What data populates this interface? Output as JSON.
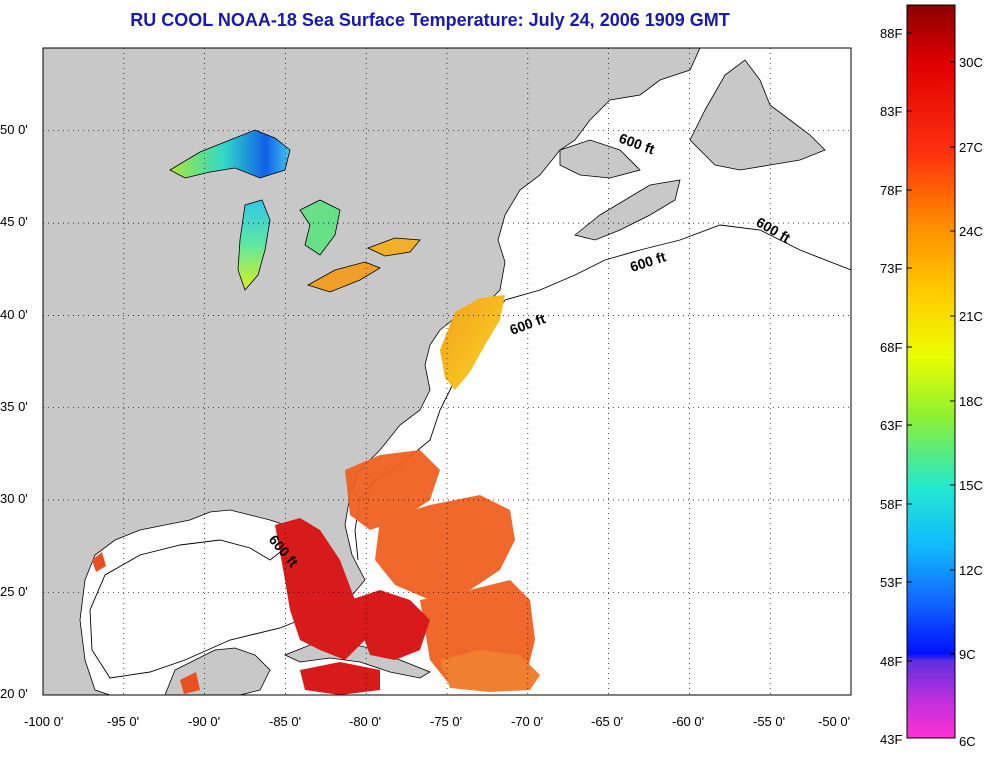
{
  "title": "RU COOL  NOAA-18  Sea Surface Temperature:  July 24, 2006 1909 GMT",
  "map": {
    "lon_ticks": [
      "-100 0'",
      "-95 0'",
      "-90 0'",
      "-85 0'",
      "-80 0'",
      "-75 0'",
      "-70 0'",
      "-65 0'",
      "-60 0'",
      "-55 0'",
      "-50 0'"
    ],
    "lat_ticks": [
      "50 0'",
      "45 0'",
      "40 0'",
      "35 0'",
      "30 0'",
      "25 0'",
      "20 0'"
    ],
    "isobath_labels": [
      "600 ft",
      "600 ft",
      "600 ft",
      "600 ft",
      "600 ft"
    ],
    "colors": {
      "land": "#c8c8c8",
      "ocean": "#ffffff",
      "title": "#1a1aa6"
    }
  },
  "colorbar": {
    "fahrenheit": [
      "88F",
      "83F",
      "78F",
      "73F",
      "68F",
      "63F",
      "58F",
      "53F",
      "48F",
      "43F"
    ],
    "celsius": [
      "30C",
      "27C",
      "24C",
      "21C",
      "18C",
      "15C",
      "12C",
      "9C",
      "6C"
    ]
  }
}
